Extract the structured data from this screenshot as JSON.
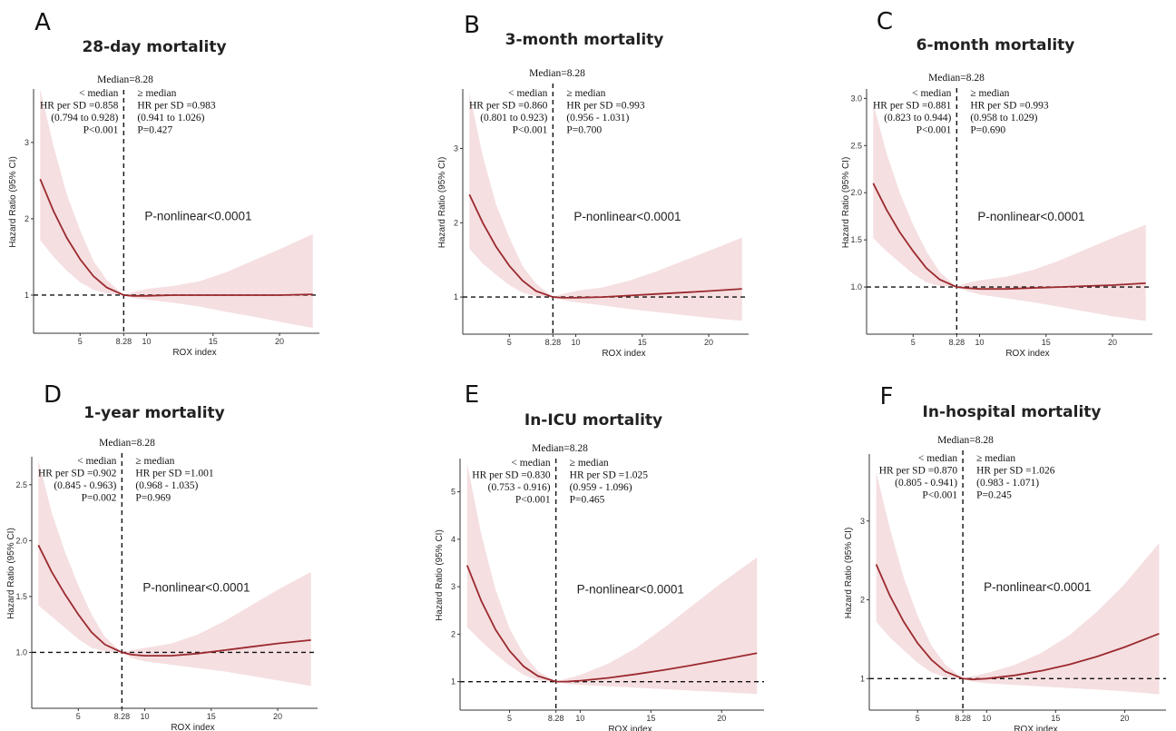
{
  "chart_data": [
    {
      "type": "line",
      "panel": "A",
      "title": "28-day mortality",
      "xlabel": "ROX index",
      "ylabel": "Hazard Ratio (95% CI)",
      "median_label": "Median=8.28",
      "median_tick": "8.28",
      "xlim": [
        1.5,
        23
      ],
      "ylim": [
        0.5,
        3.7
      ],
      "xticks": [
        5,
        10,
        15,
        20
      ],
      "xtick_labels": [
        "5",
        "10",
        "15",
        "20"
      ],
      "yticks": [
        1,
        2,
        3
      ],
      "ytick_labels": [
        "1",
        "2",
        "3"
      ],
      "below": {
        "head": "< median",
        "hr": "HR per SD =0.858",
        "ci": "(0.794 to 0.928)",
        "p": "P<0.001"
      },
      "above": {
        "head": "≥ median",
        "hr": "HR per SD =0.983",
        "ci": "(0.941 to 1.026)",
        "p": "P=0.427"
      },
      "p_nonlinear": "P-nonlinear<0.0001",
      "x": [
        2,
        3,
        4,
        5,
        6,
        7,
        8.28,
        9,
        10,
        12,
        14,
        16,
        18,
        20,
        22.5
      ],
      "hr": [
        2.52,
        2.1,
        1.75,
        1.47,
        1.25,
        1.1,
        1.0,
        0.99,
        0.99,
        1.0,
        1.0,
        1.0,
        1.0,
        1.0,
        1.01
      ],
      "lower": [
        1.72,
        1.5,
        1.32,
        1.17,
        1.07,
        1.02,
        1.0,
        0.96,
        0.94,
        0.9,
        0.85,
        0.78,
        0.72,
        0.65,
        0.57
      ],
      "upper": [
        3.7,
        2.95,
        2.32,
        1.85,
        1.45,
        1.2,
        1.0,
        1.04,
        1.08,
        1.12,
        1.18,
        1.3,
        1.45,
        1.6,
        1.8
      ]
    },
    {
      "type": "line",
      "panel": "B",
      "title": "3-month mortality",
      "xlabel": "ROX index",
      "ylabel": "Hazard Ratio (95% CI)",
      "median_label": "Median=8.28",
      "median_tick": "8.28",
      "xlim": [
        1.5,
        23
      ],
      "ylim": [
        0.5,
        3.8
      ],
      "xticks": [
        5,
        10,
        15,
        20
      ],
      "xtick_labels": [
        "5",
        "10",
        "15",
        "20"
      ],
      "yticks": [
        1,
        2,
        3
      ],
      "ytick_labels": [
        "1",
        "2",
        "3"
      ],
      "below": {
        "head": "< median",
        "hr": "HR per SD =0.860",
        "ci": "(0.801 to 0.923)",
        "p": "P<0.001"
      },
      "above": {
        "head": "≥ median",
        "hr": "HR per SD =0.993",
        "ci": "(0.956 - 1.031)",
        "p": "P=0.700"
      },
      "p_nonlinear": "P-nonlinear<0.0001",
      "x": [
        2,
        3,
        4,
        5,
        6,
        7,
        8.28,
        9,
        10,
        12,
        14,
        16,
        18,
        20,
        22.5
      ],
      "hr": [
        2.38,
        2.0,
        1.68,
        1.42,
        1.22,
        1.08,
        1.0,
        0.99,
        0.99,
        1.0,
        1.02,
        1.04,
        1.06,
        1.08,
        1.11
      ],
      "lower": [
        1.65,
        1.45,
        1.3,
        1.16,
        1.06,
        1.01,
        1.0,
        0.96,
        0.93,
        0.89,
        0.84,
        0.8,
        0.76,
        0.72,
        0.68
      ],
      "upper": [
        3.75,
        2.9,
        2.25,
        1.8,
        1.42,
        1.18,
        1.0,
        1.04,
        1.08,
        1.13,
        1.22,
        1.34,
        1.48,
        1.62,
        1.8
      ]
    },
    {
      "type": "line",
      "panel": "C",
      "title": "6-month mortality",
      "xlabel": "ROX index",
      "ylabel": "Hazard Ratio (95% CI)",
      "median_label": "Median=8.28",
      "median_tick": "8.28",
      "xlim": [
        1.5,
        23
      ],
      "ylim": [
        0.5,
        3.1
      ],
      "xticks": [
        5,
        10,
        15,
        20
      ],
      "xtick_labels": [
        "5",
        "10",
        "15",
        "20"
      ],
      "yticks": [
        1.0,
        1.5,
        2.0,
        2.5,
        3.0
      ],
      "ytick_labels": [
        "1.0",
        "1.5",
        "2.0",
        "2.5",
        "3.0"
      ],
      "below": {
        "head": "< median",
        "hr": "HR per SD =0.881",
        "ci": "(0.823 to 0.944)",
        "p": "P<0.001"
      },
      "above": {
        "head": "≥ median",
        "hr": "HR per SD =0.993",
        "ci": "(0.958 to 1.029)",
        "p": "P=0.690"
      },
      "p_nonlinear": "P-nonlinear<0.0001",
      "x": [
        2,
        3,
        4,
        5,
        6,
        7,
        8.28,
        9,
        10,
        12,
        14,
        16,
        18,
        20,
        22.5
      ],
      "hr": [
        2.1,
        1.82,
        1.58,
        1.38,
        1.2,
        1.08,
        1.0,
        0.99,
        0.98,
        0.98,
        0.99,
        1.0,
        1.01,
        1.02,
        1.04
      ],
      "lower": [
        1.52,
        1.38,
        1.26,
        1.14,
        1.05,
        1.01,
        1.0,
        0.96,
        0.92,
        0.88,
        0.84,
        0.79,
        0.74,
        0.69,
        0.64
      ],
      "upper": [
        2.95,
        2.42,
        2.0,
        1.66,
        1.38,
        1.16,
        1.0,
        1.04,
        1.07,
        1.11,
        1.18,
        1.28,
        1.4,
        1.52,
        1.66
      ]
    },
    {
      "type": "line",
      "panel": "D",
      "title": "1-year mortality",
      "xlabel": "ROX index",
      "ylabel": "Hazard Ratio (95% CI)",
      "median_label": "Median=8.28",
      "median_tick": "8.28",
      "xlim": [
        1.5,
        23
      ],
      "ylim": [
        0.5,
        2.75
      ],
      "xticks": [
        5,
        10,
        15,
        20
      ],
      "xtick_labels": [
        "5",
        "10",
        "15",
        "20"
      ],
      "yticks": [
        1.0,
        1.5,
        2.0,
        2.5
      ],
      "ytick_labels": [
        "1.0",
        "1.5",
        "2.0",
        "2.5"
      ],
      "below": {
        "head": "< median",
        "hr": "HR per SD =0.902",
        "ci": "(0.845 - 0.963)",
        "p": "P=0.002"
      },
      "above": {
        "head": "≥ median",
        "hr": "HR per SD =1.001",
        "ci": "(0.968 - 1.035)",
        "p": "P=0.969"
      },
      "p_nonlinear": "P-nonlinear<0.0001",
      "x": [
        2,
        3,
        4,
        5,
        6,
        7,
        8.28,
        9,
        10,
        12,
        14,
        16,
        18,
        20,
        22.5
      ],
      "hr": [
        1.96,
        1.72,
        1.52,
        1.34,
        1.18,
        1.07,
        1.0,
        0.98,
        0.97,
        0.97,
        0.99,
        1.02,
        1.05,
        1.08,
        1.11
      ],
      "lower": [
        1.42,
        1.32,
        1.22,
        1.12,
        1.04,
        1.01,
        1.0,
        0.95,
        0.92,
        0.89,
        0.86,
        0.83,
        0.79,
        0.75,
        0.7
      ],
      "upper": [
        2.72,
        2.25,
        1.9,
        1.6,
        1.34,
        1.14,
        1.0,
        1.02,
        1.04,
        1.08,
        1.16,
        1.28,
        1.42,
        1.56,
        1.72
      ]
    },
    {
      "type": "line",
      "panel": "E",
      "title": "In-ICU mortality",
      "xlabel": "ROX index",
      "ylabel": "Hazard Ratio (95% CI)",
      "median_label": "Median=8.28",
      "median_tick": "8.28",
      "xlim": [
        1.5,
        23
      ],
      "ylim": [
        0.4,
        5.7
      ],
      "xticks": [
        5,
        10,
        15,
        20
      ],
      "xtick_labels": [
        "5",
        "10",
        "15",
        "20"
      ],
      "yticks": [
        1,
        2,
        3,
        4,
        5
      ],
      "ytick_labels": [
        "1",
        "2",
        "3",
        "4",
        "5"
      ],
      "below": {
        "head": "< median",
        "hr": "HR per SD =0.830",
        "ci": "(0.753 - 0.916)",
        "p": "P<0.001"
      },
      "above": {
        "head": "≥ median",
        "hr": "HR per SD =1.025",
        "ci": "(0.959 - 1.096)",
        "p": "P=0.465"
      },
      "p_nonlinear": "P-nonlinear<0.0001",
      "x": [
        2,
        3,
        4,
        5,
        6,
        7,
        8.28,
        9,
        10,
        12,
        14,
        16,
        18,
        20,
        22.5
      ],
      "hr": [
        3.45,
        2.7,
        2.1,
        1.65,
        1.32,
        1.12,
        1.0,
        1.0,
        1.02,
        1.08,
        1.16,
        1.25,
        1.35,
        1.46,
        1.6
      ],
      "lower": [
        2.15,
        1.85,
        1.58,
        1.34,
        1.14,
        1.03,
        1.0,
        0.96,
        0.93,
        0.9,
        0.87,
        0.84,
        0.81,
        0.78,
        0.74
      ],
      "upper": [
        5.6,
        4.1,
        2.95,
        2.12,
        1.58,
        1.22,
        1.0,
        1.06,
        1.14,
        1.38,
        1.72,
        2.15,
        2.62,
        3.08,
        3.62
      ]
    },
    {
      "type": "line",
      "panel": "F",
      "title": "In-hospital mortality",
      "xlabel": "ROX index",
      "ylabel": "Hazard Ratio (95% CI)",
      "median_label": "Median=8.28",
      "median_tick": "8.28",
      "xlim": [
        1.5,
        23
      ],
      "ylim": [
        0.6,
        3.85
      ],
      "xticks": [
        5,
        10,
        15,
        20
      ],
      "xtick_labels": [
        "5",
        "10",
        "15",
        "20"
      ],
      "yticks": [
        1,
        2,
        3
      ],
      "ytick_labels": [
        "1",
        "2",
        "3"
      ],
      "below": {
        "head": "< median",
        "hr": "HR per SD =0.870",
        "ci": "(0.805 - 0.941)",
        "p": "P<0.001"
      },
      "above": {
        "head": "≥ median",
        "hr": "HR per SD =1.026",
        "ci": "(0.983 - 1.071)",
        "p": "P=0.245"
      },
      "p_nonlinear": "P-nonlinear<0.0001",
      "x": [
        2,
        3,
        4,
        5,
        6,
        7,
        8.28,
        9,
        10,
        12,
        14,
        16,
        18,
        20,
        22.5
      ],
      "hr": [
        2.45,
        2.05,
        1.72,
        1.45,
        1.24,
        1.09,
        1.0,
        0.99,
        1.0,
        1.04,
        1.1,
        1.18,
        1.28,
        1.4,
        1.57
      ],
      "lower": [
        1.72,
        1.52,
        1.36,
        1.2,
        1.08,
        1.02,
        1.0,
        0.96,
        0.94,
        0.92,
        0.9,
        0.88,
        0.86,
        0.84,
        0.8
      ],
      "upper": [
        3.62,
        2.9,
        2.28,
        1.8,
        1.42,
        1.18,
        1.0,
        1.03,
        1.07,
        1.17,
        1.33,
        1.55,
        1.85,
        2.2,
        2.72
      ]
    }
  ]
}
